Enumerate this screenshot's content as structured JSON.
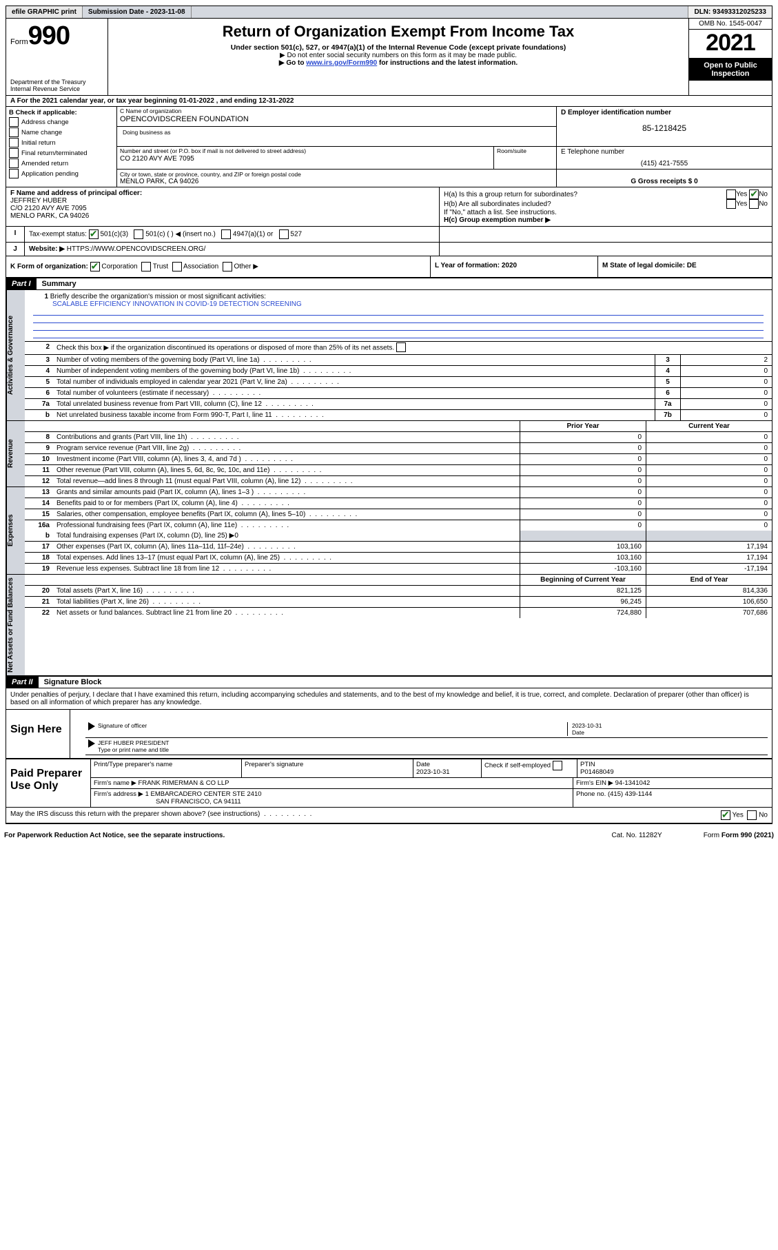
{
  "topbar": {
    "efile": "efile GRAPHIC print",
    "submission": "Submission Date - 2023-11-08",
    "dln": "DLN: 93493312025233"
  },
  "header": {
    "form_label": "Form",
    "form_num": "990",
    "dept": "Department of the Treasury",
    "irs": "Internal Revenue Service",
    "title": "Return of Organization Exempt From Income Tax",
    "sub1": "Under section 501(c), 527, or 4947(a)(1) of the Internal Revenue Code (except private foundations)",
    "sub2": "▶ Do not enter social security numbers on this form as it may be made public.",
    "sub3_pre": "▶ Go to ",
    "sub3_link": "www.irs.gov/Form990",
    "sub3_post": " for instructions and the latest information.",
    "omb": "OMB No. 1545-0047",
    "year": "2021",
    "open": "Open to Public Inspection"
  },
  "section_a": "A For the 2021 calendar year, or tax year beginning 01-01-2022   , and ending 12-31-2022",
  "section_b": {
    "label": "B Check if applicable:",
    "items": [
      "Address change",
      "Name change",
      "Initial return",
      "Final return/terminated",
      "Amended return",
      "Application pending"
    ]
  },
  "section_c": {
    "name_label": "C Name of organization",
    "name": "OPENCOVIDSCREEN FOUNDATION",
    "dba_label": "Doing business as",
    "addr_label": "Number and street (or P.O. box if mail is not delivered to street address)",
    "addr": "CO 2120 AVY AVE 7095",
    "room_label": "Room/suite",
    "city_label": "City or town, state or province, country, and ZIP or foreign postal code",
    "city": "MENLO PARK, CA  94026"
  },
  "section_d": {
    "label": "D Employer identification number",
    "value": "85-1218425"
  },
  "section_e": {
    "label": "E Telephone number",
    "value": "(415) 421-7555"
  },
  "section_g": {
    "label": "G Gross receipts $ 0"
  },
  "section_f": {
    "label": "F  Name and address of principal officer:",
    "name": "JEFFREY HUBER",
    "addr1": "C/O 2120 AVY AVE 7095",
    "addr2": "MENLO PARK, CA  94026"
  },
  "section_h": {
    "ha": "H(a)  Is this a group return for subordinates?",
    "ha_yes": "Yes",
    "ha_no": "No",
    "hb": "H(b)  Are all subordinates included?",
    "hb_yes": "Yes",
    "hb_no": "No",
    "hb_note": "If \"No,\" attach a list. See instructions.",
    "hc": "H(c)  Group exemption number ▶"
  },
  "section_i": {
    "label": "Tax-exempt status:",
    "opts": [
      "501(c)(3)",
      "501(c) (  ) ◀ (insert no.)",
      "4947(a)(1) or",
      "527"
    ]
  },
  "section_j": {
    "label": "Website: ▶",
    "value": "HTTPS://WWW.OPENCOVIDSCREEN.ORG/"
  },
  "section_k": {
    "label": "K Form of organization:",
    "opts": [
      "Corporation",
      "Trust",
      "Association",
      "Other ▶"
    ]
  },
  "section_l": {
    "label": "L Year of formation: 2020"
  },
  "section_m": {
    "label": "M State of legal domicile: DE"
  },
  "part1": {
    "hdr": "Part I",
    "title": "Summary",
    "line1_label": "Briefly describe the organization's mission or most significant activities:",
    "line1_val": "SCALABLE EFFICIENCY INNOVATION IN COVID-19 DETECTION SCREENING",
    "line2": "Check this box ▶   if the organization discontinued its operations or disposed of more than 25% of its net assets.",
    "governance_label": "Activities & Governance",
    "rows_gov": [
      {
        "n": "3",
        "t": "Number of voting members of the governing body (Part VI, line 1a)",
        "box": "3",
        "v": "2"
      },
      {
        "n": "4",
        "t": "Number of independent voting members of the governing body (Part VI, line 1b)",
        "box": "4",
        "v": "0"
      },
      {
        "n": "5",
        "t": "Total number of individuals employed in calendar year 2021 (Part V, line 2a)",
        "box": "5",
        "v": "0"
      },
      {
        "n": "6",
        "t": "Total number of volunteers (estimate if necessary)",
        "box": "6",
        "v": "0"
      },
      {
        "n": "7a",
        "t": "Total unrelated business revenue from Part VIII, column (C), line 12",
        "box": "7a",
        "v": "0"
      },
      {
        "n": "b",
        "t": "Net unrelated business taxable income from Form 990-T, Part I, line 11",
        "box": "7b",
        "v": "0"
      }
    ],
    "prior_label": "Prior Year",
    "current_label": "Current Year",
    "revenue_label": "Revenue",
    "rows_rev": [
      {
        "n": "8",
        "t": "Contributions and grants (Part VIII, line 1h)",
        "p": "0",
        "c": "0"
      },
      {
        "n": "9",
        "t": "Program service revenue (Part VIII, line 2g)",
        "p": "0",
        "c": "0"
      },
      {
        "n": "10",
        "t": "Investment income (Part VIII, column (A), lines 3, 4, and 7d )",
        "p": "0",
        "c": "0"
      },
      {
        "n": "11",
        "t": "Other revenue (Part VIII, column (A), lines 5, 6d, 8c, 9c, 10c, and 11e)",
        "p": "0",
        "c": "0"
      },
      {
        "n": "12",
        "t": "Total revenue—add lines 8 through 11 (must equal Part VIII, column (A), line 12)",
        "p": "0",
        "c": "0"
      }
    ],
    "expenses_label": "Expenses",
    "rows_exp": [
      {
        "n": "13",
        "t": "Grants and similar amounts paid (Part IX, column (A), lines 1–3 )",
        "p": "0",
        "c": "0"
      },
      {
        "n": "14",
        "t": "Benefits paid to or for members (Part IX, column (A), line 4)",
        "p": "0",
        "c": "0"
      },
      {
        "n": "15",
        "t": "Salaries, other compensation, employee benefits (Part IX, column (A), lines 5–10)",
        "p": "0",
        "c": "0"
      },
      {
        "n": "16a",
        "t": "Professional fundraising fees (Part IX, column (A), line 11e)",
        "p": "0",
        "c": "0"
      }
    ],
    "line16b": "Total fundraising expenses (Part IX, column (D), line 25) ▶0",
    "rows_exp2": [
      {
        "n": "17",
        "t": "Other expenses (Part IX, column (A), lines 11a–11d, 11f–24e)",
        "p": "103,160",
        "c": "17,194"
      },
      {
        "n": "18",
        "t": "Total expenses. Add lines 13–17 (must equal Part IX, column (A), line 25)",
        "p": "103,160",
        "c": "17,194"
      },
      {
        "n": "19",
        "t": "Revenue less expenses. Subtract line 18 from line 12",
        "p": "-103,160",
        "c": "-17,194"
      }
    ],
    "netassets_label": "Net Assets or Fund Balances",
    "begin_label": "Beginning of Current Year",
    "end_label": "End of Year",
    "rows_net": [
      {
        "n": "20",
        "t": "Total assets (Part X, line 16)",
        "p": "821,125",
        "c": "814,336"
      },
      {
        "n": "21",
        "t": "Total liabilities (Part X, line 26)",
        "p": "96,245",
        "c": "106,650"
      },
      {
        "n": "22",
        "t": "Net assets or fund balances. Subtract line 21 from line 20",
        "p": "724,880",
        "c": "707,686"
      }
    ]
  },
  "part2": {
    "hdr": "Part II",
    "title": "Signature Block",
    "decl": "Under penalties of perjury, I declare that I have examined this return, including accompanying schedules and statements, and to the best of my knowledge and belief, it is true, correct, and complete. Declaration of preparer (other than officer) is based on all information of which preparer has any knowledge.",
    "sign_here": "Sign Here",
    "sig_officer": "Signature of officer",
    "sig_date": "Date",
    "sig_date_val": "2023-10-31",
    "sig_name": "JEFF HUBER  PRESIDENT",
    "sig_name_label": "Type or print name and title",
    "paid_label": "Paid Preparer Use Only",
    "p_name_label": "Print/Type preparer's name",
    "p_sig_label": "Preparer's signature",
    "p_date_label": "Date",
    "p_date": "2023-10-31",
    "p_check": "Check   if self-employed",
    "p_ptin_label": "PTIN",
    "p_ptin": "P01468049",
    "firm_name_label": "Firm's name    ▶",
    "firm_name": "FRANK RIMERMAN & CO LLP",
    "firm_ein_label": "Firm's EIN ▶",
    "firm_ein": "94-1341042",
    "firm_addr_label": "Firm's address ▶",
    "firm_addr1": "1 EMBARCADERO CENTER STE 2410",
    "firm_addr2": "SAN FRANCISCO, CA  94111",
    "firm_phone_label": "Phone no.",
    "firm_phone": "(415) 439-1144",
    "may_irs": "May the IRS discuss this return with the preparer shown above? (see instructions)",
    "yes": "Yes",
    "no": "No"
  },
  "footer": {
    "pra": "For Paperwork Reduction Act Notice, see the separate instructions.",
    "cat": "Cat. No. 11282Y",
    "form": "Form 990 (2021)"
  }
}
